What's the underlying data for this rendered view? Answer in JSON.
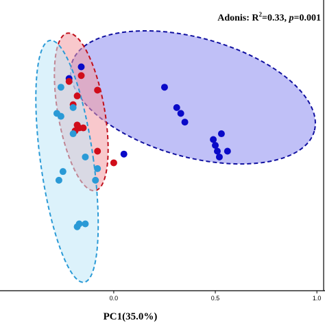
{
  "chart_data": {
    "type": "scatter",
    "title": "",
    "xlabel": "PC1(35.0%)",
    "ylabel": "",
    "annotation": {
      "prefix": "Adonis: R",
      "superscript": "2",
      "mid": "=0.33, ",
      "p_symbol": "p",
      "suffix": "=0.001"
    },
    "xlim": [
      -0.56,
      1.04
    ],
    "ylim": [
      -0.78,
      0.22
    ],
    "x_ticks": [
      "0.0",
      "0.5",
      "1.0"
    ],
    "x_tick_values": [
      0.0,
      0.5,
      1.0
    ],
    "grid": false,
    "legend": "none",
    "series": [
      {
        "color": "#0a0ac8",
        "fill": "#8c8cf0",
        "stroke": "#1010a0",
        "ellipse": {
          "cx": 0.39,
          "cy": -0.115,
          "rx": 0.62,
          "ry": 0.205,
          "angle": 15.5
        },
        "points": [
          [
            0.25,
            -0.08
          ],
          [
            0.31,
            -0.15
          ],
          [
            0.33,
            -0.17
          ],
          [
            0.35,
            -0.2
          ],
          [
            0.49,
            -0.26
          ],
          [
            0.5,
            -0.28
          ],
          [
            0.51,
            -0.3
          ],
          [
            0.52,
            -0.32
          ],
          [
            0.53,
            -0.24
          ],
          [
            0.56,
            -0.3
          ],
          [
            0.05,
            -0.31
          ],
          [
            -0.16,
            -0.01
          ],
          [
            -0.22,
            -0.05
          ]
        ]
      },
      {
        "color": "#d00d1a",
        "fill": "#f29ba3",
        "stroke": "#c0101c",
        "ellipse": {
          "cx": -0.16,
          "cy": -0.165,
          "rx": 0.115,
          "ry": 0.275,
          "angle": -10
        },
        "points": [
          [
            -0.22,
            -0.06
          ],
          [
            -0.18,
            -0.11
          ],
          [
            -0.08,
            -0.09
          ],
          [
            -0.2,
            -0.14
          ],
          [
            -0.18,
            -0.21
          ],
          [
            -0.17,
            -0.22
          ],
          [
            -0.15,
            -0.22
          ],
          [
            -0.19,
            -0.23
          ],
          [
            -0.08,
            -0.3
          ],
          [
            0.0,
            -0.34
          ],
          [
            -0.16,
            -0.04
          ]
        ]
      },
      {
        "color": "#2a9ad6",
        "fill": "#bfe7f7",
        "stroke": "#2a9ad6",
        "ellipse": {
          "cx": -0.23,
          "cy": -0.335,
          "rx": 0.13,
          "ry": 0.42,
          "angle": -8
        },
        "points": [
          [
            -0.26,
            -0.08
          ],
          [
            -0.2,
            -0.15
          ],
          [
            -0.28,
            -0.17
          ],
          [
            -0.26,
            -0.18
          ],
          [
            -0.14,
            -0.32
          ],
          [
            -0.08,
            -0.36
          ],
          [
            -0.09,
            -0.4
          ],
          [
            -0.25,
            -0.37
          ],
          [
            -0.27,
            -0.4
          ],
          [
            -0.17,
            -0.55
          ],
          [
            -0.18,
            -0.56
          ],
          [
            -0.14,
            -0.55
          ],
          [
            -0.2,
            -0.24
          ]
        ]
      }
    ]
  }
}
